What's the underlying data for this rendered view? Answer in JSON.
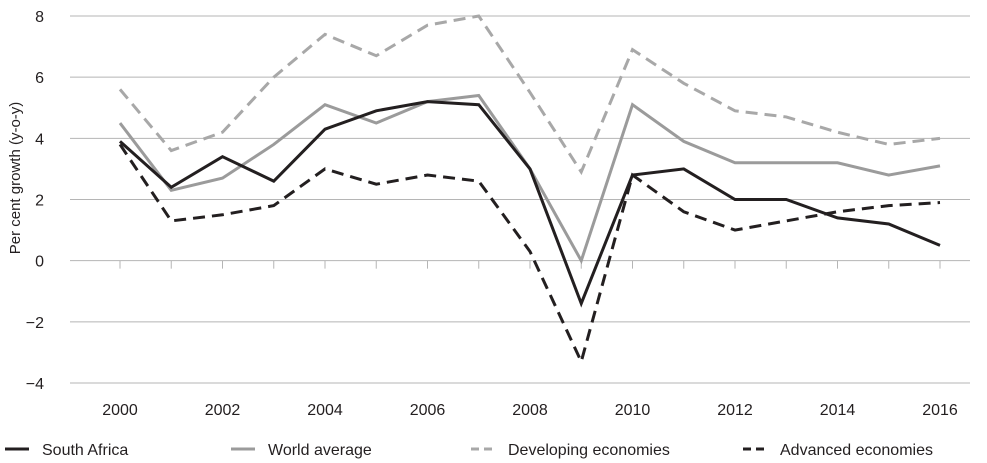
{
  "chart_data": {
    "type": "line",
    "title": "",
    "xlabel": "",
    "ylabel": "Per cent growth (y-o-y)",
    "x": [
      2000,
      2001,
      2002,
      2003,
      2004,
      2005,
      2006,
      2007,
      2008,
      2009,
      2010,
      2011,
      2012,
      2013,
      2014,
      2015,
      2016
    ],
    "xticks": [
      "2000",
      "2002",
      "2004",
      "2006",
      "2008",
      "2010",
      "2012",
      "2014",
      "2016"
    ],
    "yticks": [
      "8",
      "6",
      "4",
      "2",
      "0",
      "−2",
      "−4"
    ],
    "ylim": [
      -4,
      8
    ],
    "grid": "horizontal",
    "legend_position": "bottom",
    "series": [
      {
        "name": "South Africa",
        "color": "#231f20",
        "dash": "solid",
        "values": [
          3.9,
          2.4,
          3.4,
          2.6,
          4.3,
          4.9,
          5.2,
          5.1,
          3.0,
          -1.4,
          2.8,
          3.0,
          2.0,
          2.0,
          1.4,
          1.2,
          0.5
        ]
      },
      {
        "name": "World average",
        "color": "#9b9b9b",
        "dash": "solid",
        "values": [
          4.5,
          2.3,
          2.7,
          3.8,
          5.1,
          4.5,
          5.2,
          5.4,
          3.0,
          0.0,
          5.1,
          3.9,
          3.2,
          3.2,
          3.2,
          2.8,
          3.1
        ]
      },
      {
        "name": "Developing economies",
        "color": "#a8a8a8",
        "dash": "dashed",
        "values": [
          5.6,
          3.6,
          4.2,
          6.0,
          7.4,
          6.7,
          7.7,
          8.0,
          5.5,
          2.9,
          6.9,
          5.8,
          4.9,
          4.7,
          4.2,
          3.8,
          4.0
        ]
      },
      {
        "name": "Advanced economies",
        "color": "#231f20",
        "dash": "dashed",
        "values": [
          3.8,
          1.3,
          1.5,
          1.8,
          3.0,
          2.5,
          2.8,
          2.6,
          0.3,
          -3.3,
          2.8,
          1.6,
          1.0,
          1.3,
          1.6,
          1.8,
          1.9
        ]
      }
    ]
  }
}
